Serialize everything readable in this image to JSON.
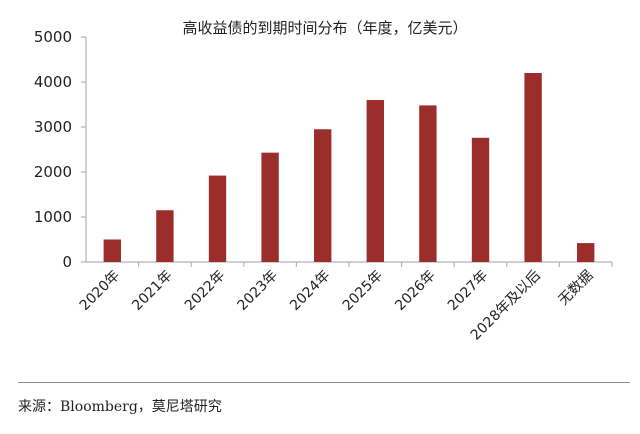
{
  "chart_data": {
    "type": "bar",
    "title": "高收益债的到期时间分布（年度，亿美元）",
    "categories": [
      "2020年",
      "2021年",
      "2022年",
      "2023年",
      "2024年",
      "2025年",
      "2026年",
      "2027年",
      "2028年及以后",
      "无数据"
    ],
    "values": [
      500,
      1150,
      1920,
      2430,
      2950,
      3600,
      3480,
      2760,
      4200,
      420
    ],
    "ylim": [
      0,
      5000
    ],
    "yticks": [
      0,
      1000,
      2000,
      3000,
      4000,
      5000
    ],
    "xlabel": "",
    "ylabel": "",
    "grid": false,
    "legend": "none",
    "bar_color": "#9b2d2a",
    "axis_color": "#b5b5b5"
  },
  "source": "来源：Bloomberg，莫尼塔研究"
}
